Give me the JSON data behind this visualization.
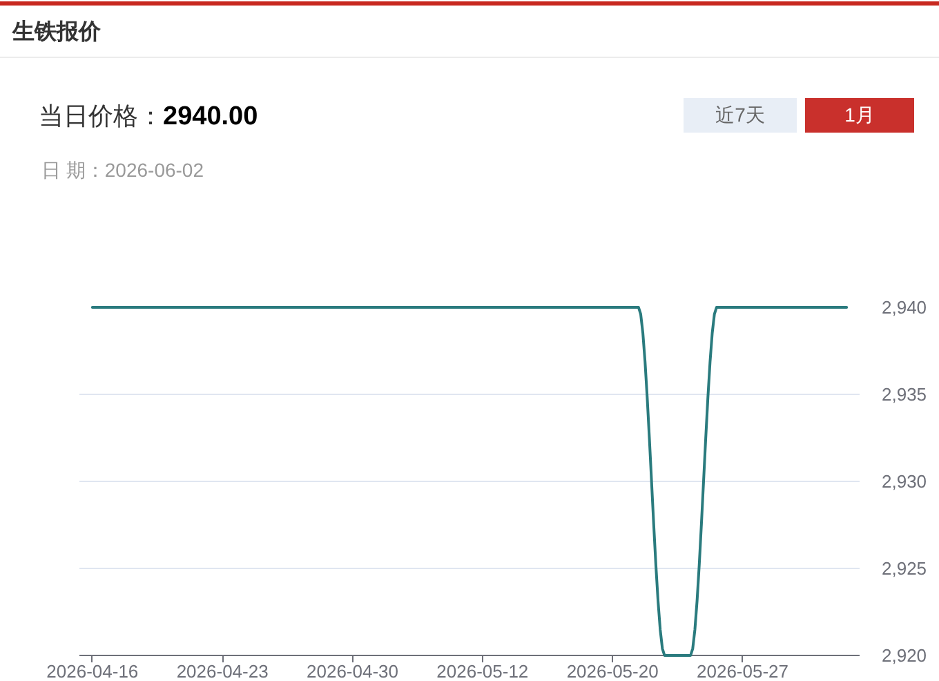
{
  "chart_data": {
    "type": "line",
    "title": "生铁报价",
    "annotations": [
      "当日价格：",
      "2940.00",
      "日 期：2026-06-02",
      "近7天",
      "1月"
    ],
    "categories": [
      "2026-04-16",
      null,
      null,
      null,
      null,
      "2026-04-23",
      null,
      null,
      null,
      null,
      "2026-04-30",
      null,
      null,
      null,
      null,
      "2026-05-12",
      null,
      null,
      null,
      null,
      "2026-05-20",
      null,
      null,
      null,
      null,
      "2026-05-27",
      null,
      null,
      null,
      null
    ],
    "series": [
      {
        "color": "#2a7b7e",
        "values": [
          2940,
          2940,
          2940,
          2940,
          2940,
          2940,
          2940,
          2940,
          2940,
          2940,
          2940,
          2940,
          2940,
          2940,
          2940,
          2940,
          2940,
          2940,
          2940,
          2940,
          2940,
          2940,
          2920,
          2920,
          2940,
          2940,
          2940,
          2940,
          2940,
          2940
        ]
      }
    ],
    "ylim": [
      2920,
      2940
    ],
    "yticks": [
      {
        "value": 2920,
        "label": "2,920"
      },
      {
        "value": 2925,
        "label": "2,925"
      },
      {
        "value": 2930,
        "label": "2,930"
      },
      {
        "value": 2935,
        "label": "2,935"
      },
      {
        "value": 2940,
        "label": "2,940"
      }
    ],
    "grid": "y"
  }
}
